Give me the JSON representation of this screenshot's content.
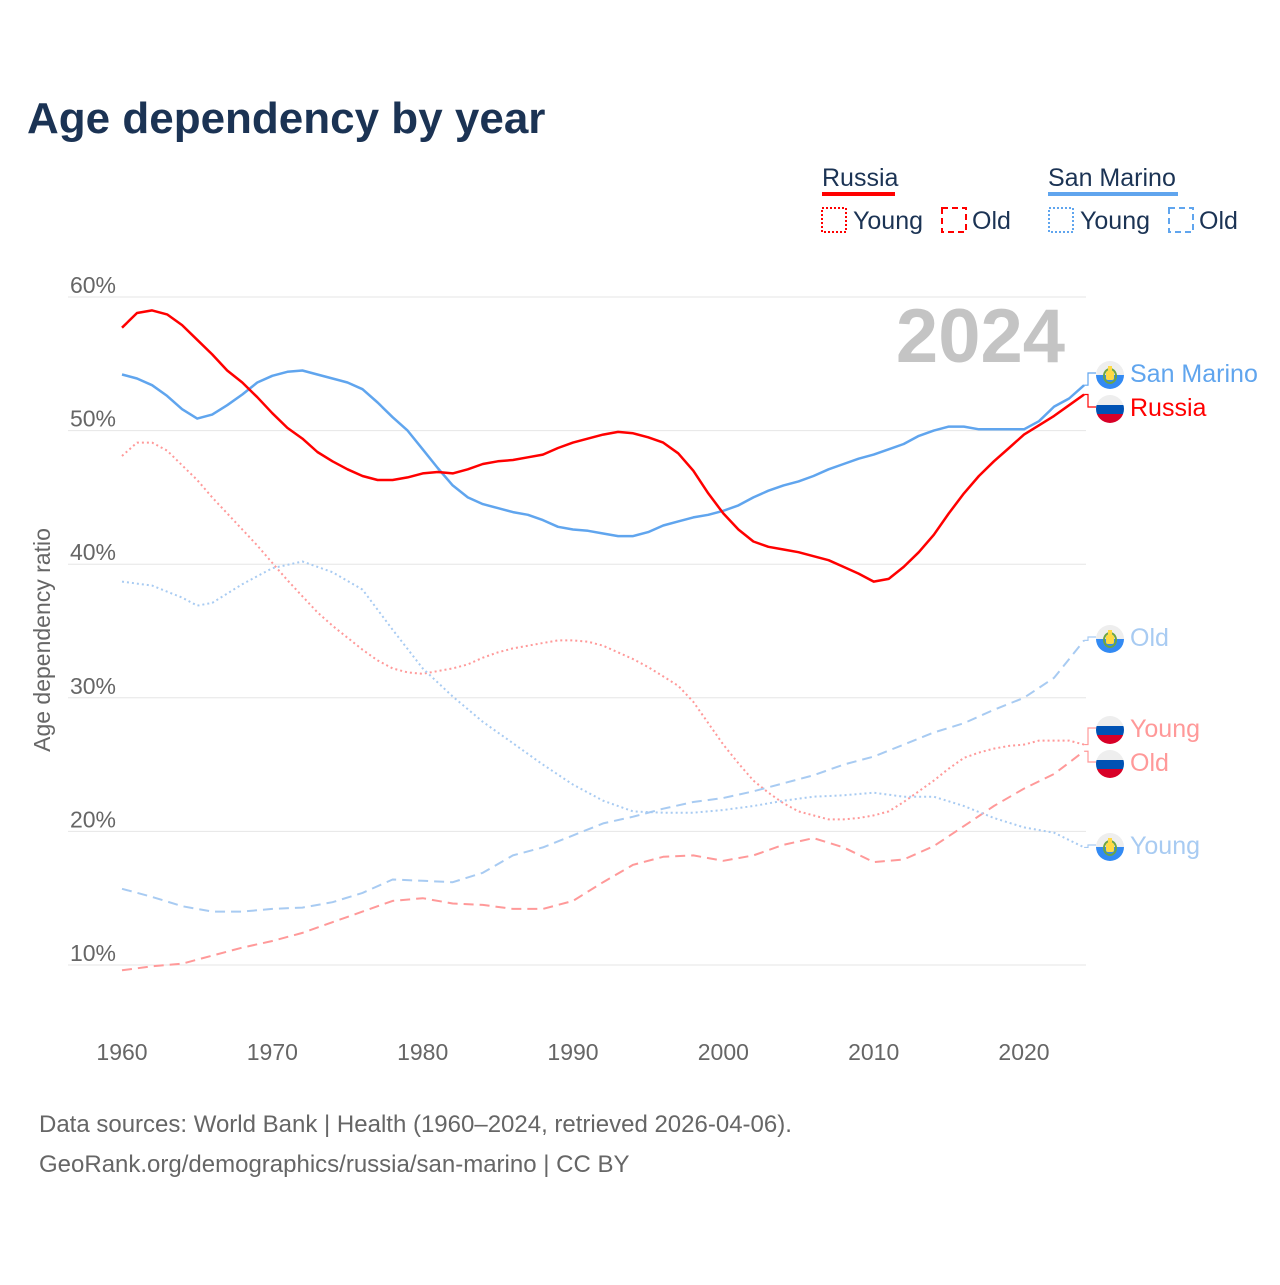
{
  "chart_data": {
    "type": "line",
    "title": "Age dependency by year",
    "xlabel": "",
    "ylabel": "Age dependency ratio",
    "xlim": [
      1960,
      2024
    ],
    "ylim": [
      5,
      62
    ],
    "yticks": [
      10,
      20,
      30,
      40,
      50,
      60
    ],
    "ytick_labels": [
      "10%",
      "20%",
      "30%",
      "40%",
      "50%",
      "60%"
    ],
    "xticks": [
      1960,
      1970,
      1980,
      1990,
      2000,
      2010,
      2020
    ],
    "xtick_labels": [
      "1960",
      "1970",
      "1980",
      "1990",
      "2000",
      "2010",
      "2020"
    ],
    "year_watermark": "2024",
    "grid": true,
    "legend": {
      "placement": "top-right",
      "groups": [
        {
          "name": "Russia",
          "color": "#ff0000",
          "young": "Young",
          "old": "Old"
        },
        {
          "name": "San Marino",
          "color": "#60a5ee",
          "young": "Young",
          "old": "Old"
        }
      ]
    },
    "series": [
      {
        "id": "ru-total",
        "name": "Russia",
        "end_label": "Russia",
        "country": "russia",
        "color": "#ff0000",
        "style": "solid",
        "x": [
          1960,
          1961,
          1962,
          1963,
          1964,
          1965,
          1966,
          1967,
          1968,
          1969,
          1970,
          1971,
          1972,
          1973,
          1974,
          1975,
          1976,
          1977,
          1978,
          1979,
          1980,
          1981,
          1982,
          1983,
          1984,
          1985,
          1986,
          1987,
          1988,
          1989,
          1990,
          1991,
          1992,
          1993,
          1994,
          1995,
          1996,
          1997,
          1998,
          1999,
          2000,
          2001,
          2002,
          2003,
          2004,
          2005,
          2006,
          2007,
          2008,
          2009,
          2010,
          2011,
          2012,
          2013,
          2014,
          2015,
          2016,
          2017,
          2018,
          2019,
          2020,
          2021,
          2022,
          2023,
          2024
        ],
        "y": [
          57.7,
          58.8,
          59.0,
          58.7,
          57.9,
          56.8,
          55.7,
          54.5,
          53.6,
          52.5,
          51.3,
          50.2,
          49.4,
          48.4,
          47.7,
          47.1,
          46.6,
          46.3,
          46.3,
          46.5,
          46.8,
          46.9,
          46.8,
          47.1,
          47.5,
          47.7,
          47.8,
          48.0,
          48.2,
          48.7,
          49.1,
          49.4,
          49.7,
          49.9,
          49.8,
          49.5,
          49.1,
          48.3,
          47.0,
          45.3,
          43.8,
          42.6,
          41.7,
          41.3,
          41.1,
          40.9,
          40.6,
          40.3,
          39.8,
          39.3,
          38.7,
          38.9,
          39.8,
          40.9,
          42.2,
          43.8,
          45.3,
          46.6,
          47.7,
          48.7,
          49.7,
          50.4,
          51.1,
          51.9,
          52.7
        ]
      },
      {
        "id": "sm-total",
        "name": "San Marino",
        "end_label": "San Marino",
        "country": "san-marino",
        "color": "#60a5ee",
        "style": "solid",
        "x": [
          1960,
          1961,
          1962,
          1963,
          1964,
          1965,
          1966,
          1967,
          1968,
          1969,
          1970,
          1971,
          1972,
          1973,
          1974,
          1975,
          1976,
          1977,
          1978,
          1979,
          1980,
          1981,
          1982,
          1983,
          1984,
          1985,
          1986,
          1987,
          1988,
          1989,
          1990,
          1991,
          1992,
          1993,
          1994,
          1995,
          1996,
          1997,
          1998,
          1999,
          2000,
          2001,
          2002,
          2003,
          2004,
          2005,
          2006,
          2007,
          2008,
          2009,
          2010,
          2011,
          2012,
          2013,
          2014,
          2015,
          2016,
          2017,
          2018,
          2019,
          2020,
          2021,
          2022,
          2023,
          2024
        ],
        "y": [
          54.2,
          53.9,
          53.4,
          52.6,
          51.6,
          50.9,
          51.2,
          51.9,
          52.7,
          53.6,
          54.1,
          54.4,
          54.5,
          54.2,
          53.9,
          53.6,
          53.1,
          52.1,
          51.0,
          50.0,
          48.6,
          47.2,
          45.9,
          45.0,
          44.5,
          44.2,
          43.9,
          43.7,
          43.3,
          42.8,
          42.6,
          42.5,
          42.3,
          42.1,
          42.1,
          42.4,
          42.9,
          43.2,
          43.5,
          43.7,
          44.0,
          44.4,
          45.0,
          45.5,
          45.9,
          46.2,
          46.6,
          47.1,
          47.5,
          47.9,
          48.2,
          48.6,
          49.0,
          49.6,
          50.0,
          50.3,
          50.3,
          50.1,
          50.1,
          50.1,
          50.1,
          50.7,
          51.8,
          52.4,
          53.4
        ]
      },
      {
        "id": "ru-young",
        "name": "Russia Young",
        "end_label": "Young",
        "country": "russia",
        "color": "#ff9999",
        "style": "dotted",
        "x": [
          1960,
          1961,
          1962,
          1963,
          1964,
          1965,
          1966,
          1967,
          1968,
          1969,
          1970,
          1971,
          1972,
          1973,
          1974,
          1975,
          1976,
          1977,
          1978,
          1979,
          1980,
          1981,
          1982,
          1983,
          1984,
          1985,
          1986,
          1987,
          1988,
          1989,
          1990,
          1991,
          1992,
          1993,
          1994,
          1995,
          1996,
          1997,
          1998,
          1999,
          2000,
          2001,
          2002,
          2003,
          2004,
          2005,
          2006,
          2007,
          2008,
          2009,
          2010,
          2011,
          2012,
          2013,
          2014,
          2015,
          2016,
          2017,
          2018,
          2019,
          2020,
          2021,
          2022,
          2023,
          2024
        ],
        "y": [
          48.1,
          49.1,
          49.1,
          48.5,
          47.4,
          46.3,
          45.0,
          43.8,
          42.6,
          41.4,
          40.1,
          38.8,
          37.6,
          36.4,
          35.4,
          34.5,
          33.6,
          32.8,
          32.2,
          31.9,
          31.8,
          32.0,
          32.2,
          32.5,
          33.0,
          33.4,
          33.7,
          33.9,
          34.1,
          34.3,
          34.3,
          34.2,
          33.9,
          33.4,
          32.9,
          32.3,
          31.6,
          30.9,
          29.7,
          28.1,
          26.5,
          25.1,
          23.8,
          22.9,
          22.1,
          21.5,
          21.2,
          20.9,
          20.9,
          21.0,
          21.2,
          21.5,
          22.2,
          23.0,
          23.8,
          24.7,
          25.5,
          25.9,
          26.2,
          26.4,
          26.5,
          26.8,
          26.8,
          26.8,
          26.5
        ]
      },
      {
        "id": "ru-old",
        "name": "Russia Old",
        "end_label": "Old",
        "country": "russia",
        "color": "#ff9999",
        "style": "dashed",
        "x": [
          1960,
          1962,
          1964,
          1966,
          1968,
          1970,
          1972,
          1974,
          1976,
          1978,
          1980,
          1982,
          1984,
          1986,
          1988,
          1990,
          1992,
          1994,
          1996,
          1998,
          2000,
          2002,
          2004,
          2006,
          2008,
          2010,
          2012,
          2014,
          2016,
          2018,
          2020,
          2022,
          2024
        ],
        "y": [
          9.6,
          9.9,
          10.1,
          10.7,
          11.3,
          11.8,
          12.4,
          13.2,
          14.0,
          14.8,
          15.0,
          14.6,
          14.5,
          14.2,
          14.2,
          14.8,
          16.2,
          17.5,
          18.1,
          18.2,
          17.8,
          18.2,
          19.0,
          19.5,
          18.8,
          17.7,
          17.9,
          18.9,
          20.4,
          21.9,
          23.2,
          24.3,
          26.0
        ]
      },
      {
        "id": "sm-young",
        "name": "San Marino Young",
        "end_label": "Young",
        "country": "san-marino",
        "color": "#a8cbf2",
        "style": "dotted",
        "x": [
          1960,
          1962,
          1964,
          1965,
          1966,
          1968,
          1970,
          1972,
          1974,
          1976,
          1978,
          1980,
          1982,
          1984,
          1986,
          1988,
          1990,
          1992,
          1994,
          1996,
          1998,
          2000,
          2002,
          2004,
          2006,
          2008,
          2010,
          2012,
          2014,
          2016,
          2018,
          2020,
          2022,
          2024
        ],
        "y": [
          38.7,
          38.4,
          37.5,
          36.9,
          37.1,
          38.5,
          39.7,
          40.2,
          39.4,
          38.1,
          35.1,
          32.2,
          30.1,
          28.2,
          26.6,
          25.0,
          23.5,
          22.3,
          21.5,
          21.4,
          21.4,
          21.6,
          21.9,
          22.3,
          22.6,
          22.7,
          22.9,
          22.6,
          22.6,
          21.9,
          21.0,
          20.3,
          19.9,
          18.8
        ]
      },
      {
        "id": "sm-old",
        "name": "San Marino Old",
        "end_label": "Old",
        "country": "san-marino",
        "color": "#a8cbf2",
        "style": "dashed",
        "x": [
          1960,
          1962,
          1964,
          1966,
          1968,
          1970,
          1972,
          1974,
          1976,
          1978,
          1980,
          1982,
          1984,
          1986,
          1988,
          1990,
          1992,
          1994,
          1996,
          1998,
          2000,
          2002,
          2004,
          2006,
          2008,
          2010,
          2012,
          2014,
          2016,
          2018,
          2020,
          2022,
          2024
        ],
        "y": [
          15.7,
          15.1,
          14.4,
          14.0,
          14.0,
          14.2,
          14.3,
          14.7,
          15.4,
          16.4,
          16.3,
          16.2,
          16.9,
          18.2,
          18.8,
          19.7,
          20.6,
          21.1,
          21.7,
          22.2,
          22.5,
          23.0,
          23.6,
          24.2,
          25.0,
          25.6,
          26.5,
          27.4,
          28.1,
          29.1,
          30.0,
          31.5,
          34.3
        ]
      }
    ]
  },
  "source": {
    "line1": "Data sources: World Bank | Health (1960–2024, retrieved 2026-04-06).",
    "line2": "GeoRank.org/demographics/russia/san-marino | CC BY"
  }
}
